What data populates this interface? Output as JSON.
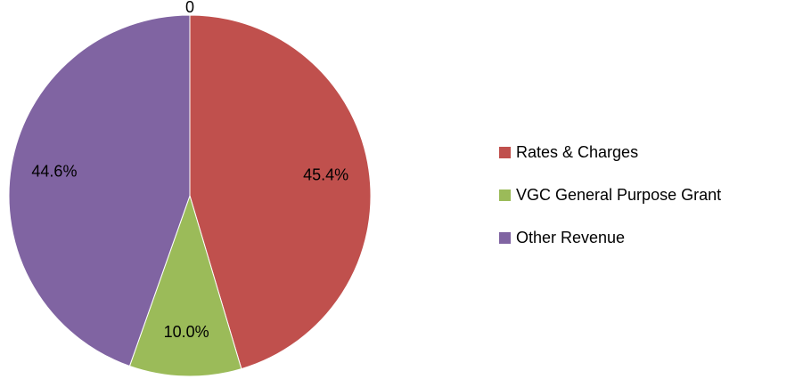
{
  "chart_data": {
    "type": "pie",
    "categories": [
      null,
      "Rates & Charges",
      "VGC General Purpose Grant",
      "Other Revenue"
    ],
    "values": [
      0,
      45.4,
      10.0,
      44.6
    ],
    "value_labels": [
      "0",
      "45.4%",
      "10.0%",
      "44.6%"
    ],
    "colors": [
      "#4f81bd",
      "#c0504d",
      "#9bbb59",
      "#8064a2"
    ],
    "legend": "right"
  }
}
